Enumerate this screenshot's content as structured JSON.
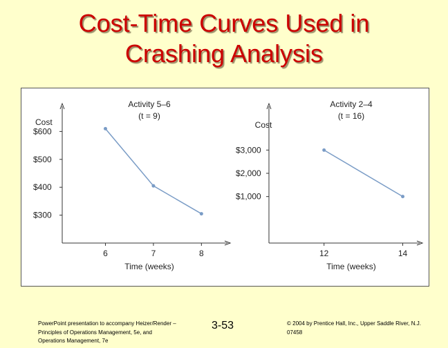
{
  "slide": {
    "title_line1": "Cost-Time Curves Used in",
    "title_line2": "Crashing Analysis"
  },
  "footer": {
    "left_text": "PowerPoint presentation to accompany Heizer/Render – Principles of Operations Management, 5e, and Operations Management, 7e",
    "page_number": "3-53",
    "right_text": "© 2004 by Prentice Hall, Inc., Upper Saddle River, N.J. 07458"
  },
  "colors": {
    "title": "#CC0000",
    "background": "#FFFFCC",
    "line": "#7A9CC6"
  },
  "chart_data": [
    {
      "type": "line",
      "title": "Activity 5–6",
      "subtitle": "(t = 9)",
      "xlabel": "Time (weeks)",
      "ylabel": "Cost",
      "x": [
        6,
        7,
        8
      ],
      "y": [
        610,
        405,
        305
      ],
      "xticks": [
        "6",
        "7",
        "8"
      ],
      "xtick_values": [
        6,
        7,
        8
      ],
      "yticks": [
        "$300",
        "$400",
        "$500",
        "$600"
      ],
      "ytick_values": [
        300,
        400,
        500,
        600
      ],
      "xlim": [
        5.1,
        8.6
      ],
      "ylim": [
        200,
        700
      ]
    },
    {
      "type": "line",
      "title": "Activity 2–4",
      "subtitle": "(t = 16)",
      "xlabel": "Time (weeks)",
      "ylabel": "Cost",
      "x": [
        12,
        14
      ],
      "y": [
        3000,
        1000
      ],
      "xticks": [
        "12",
        "14"
      ],
      "xtick_values": [
        12,
        14
      ],
      "yticks": [
        "$1,000",
        "$2,000",
        "$3,000"
      ],
      "ytick_values": [
        1000,
        2000,
        3000
      ],
      "xlim": [
        10.6,
        14.5
      ],
      "ylim": [
        -1000,
        5000
      ]
    }
  ]
}
